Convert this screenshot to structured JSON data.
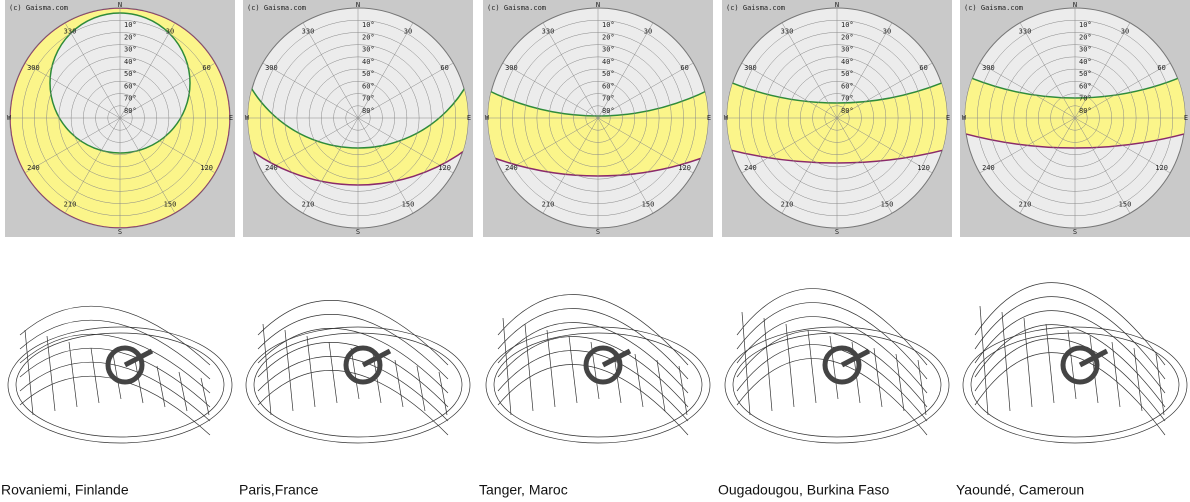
{
  "diagram": {
    "watermark": "(c) Gaisma.com",
    "directions": {
      "N": "N",
      "S": "S",
      "E": "E",
      "W": "W"
    },
    "azimuths": [
      "330",
      "30",
      "300",
      "60",
      "240",
      "120",
      "210",
      "150"
    ],
    "altitudes": [
      "10°",
      "20°",
      "30°",
      "40°",
      "50°",
      "60°",
      "70°",
      "80°"
    ]
  },
  "panels": [
    {
      "caption": "Rovaniemi, Finlande"
    },
    {
      "caption": "Paris,France"
    },
    {
      "caption": "Tanger, Maroc"
    },
    {
      "caption": "Ougadougou, Burkina Faso"
    },
    {
      "caption": "Yaoundé, Cameroun"
    }
  ]
}
